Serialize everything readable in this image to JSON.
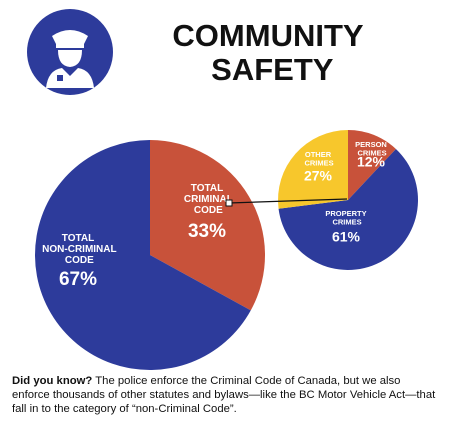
{
  "header": {
    "title": "COMMUNITY SAFETY"
  },
  "chart_data": [
    {
      "type": "pie",
      "categories": [
        "TOTAL CRIMINAL CODE",
        "TOTAL NON-CRIMINAL CODE"
      ],
      "values": [
        33,
        67
      ],
      "value_labels": [
        "33%",
        "67%"
      ],
      "colors": [
        "#c8523a",
        "#2d3b9b"
      ]
    },
    {
      "type": "pie",
      "categories": [
        "PERSON CRIMES",
        "PROPERTY CRIMES",
        "OTHER CRIMES"
      ],
      "values": [
        12,
        61,
        27
      ],
      "value_labels": [
        "12%",
        "61%",
        "27%"
      ],
      "colors": [
        "#c8523a",
        "#2d3b9b",
        "#f7c72c"
      ]
    }
  ],
  "footer": {
    "lead": "Did you know?",
    "text": "The police enforce the Criminal Code of Canada, but we also enforce thousands of other statutes and bylaws—like the BC Motor Vehicle Act—that fall in to the category of “non-Criminal Code”."
  }
}
